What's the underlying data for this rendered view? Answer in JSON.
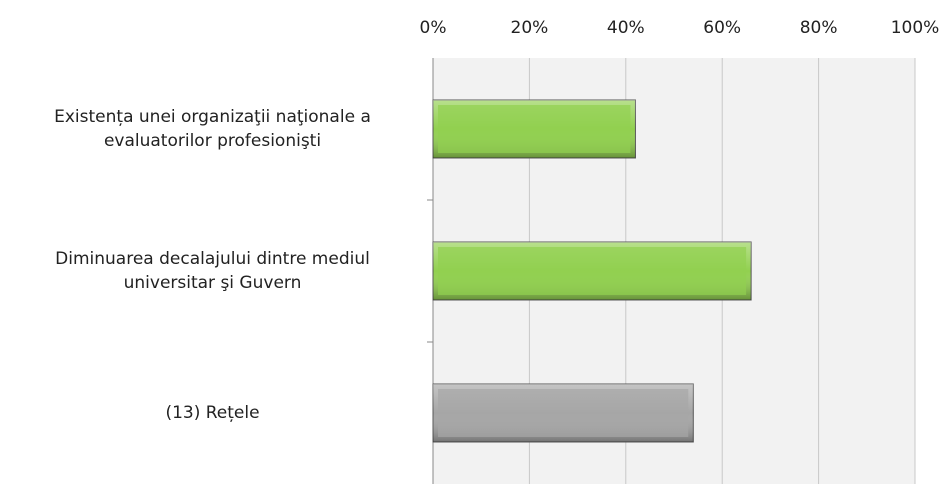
{
  "chart_data": {
    "type": "barh",
    "categories": [
      "Existența unei organizaţii naţionale a evaluatorilor profesionişti",
      "Diminuarea decalajului dintre mediul universitar şi Guvern",
      "(13) Rețele"
    ],
    "values": [
      42,
      66,
      54
    ],
    "colors": [
      "#92d050",
      "#92d050",
      "#a6a6a6"
    ],
    "xlim": [
      0,
      100
    ],
    "xticks": [
      {
        "value": 0,
        "label": "0%"
      },
      {
        "value": 20,
        "label": "20%"
      },
      {
        "value": 40,
        "label": "40%"
      },
      {
        "value": 60,
        "label": "60%"
      },
      {
        "value": 80,
        "label": "80%"
      },
      {
        "value": 100,
        "label": "100%"
      }
    ],
    "grid": true
  }
}
